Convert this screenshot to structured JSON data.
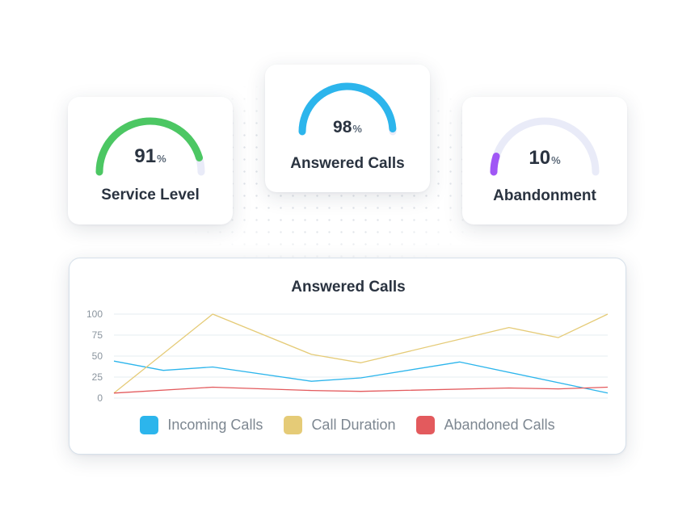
{
  "gauges": [
    {
      "label": "Service Level",
      "value": 91,
      "unit": "%",
      "color": "#4cc763"
    },
    {
      "label": "Answered Calls",
      "value": 98,
      "unit": "%",
      "color": "#2cb5ec"
    },
    {
      "label": "Abandonment",
      "value": 10,
      "unit": "%",
      "color": "#a057f5"
    }
  ],
  "gauge_track_color": "#e9ebf8",
  "chart_data": {
    "type": "line",
    "title": "Answered Calls",
    "x": [
      0,
      1,
      2,
      3,
      4,
      5,
      6,
      7,
      8,
      9,
      10
    ],
    "ylim": [
      0,
      100
    ],
    "yticks": [
      0,
      25,
      50,
      75,
      100
    ],
    "grid": true,
    "legend_position": "bottom",
    "series": [
      {
        "name": "Incoming Calls",
        "color": "#2cb5ec",
        "values": [
          44,
          33,
          37,
          null,
          20,
          24,
          null,
          43,
          null,
          null,
          6
        ]
      },
      {
        "name": "Call Duration",
        "color": "#e5cb77",
        "values": [
          6,
          null,
          100,
          null,
          52,
          42,
          null,
          null,
          84,
          72,
          100
        ]
      },
      {
        "name": "Abandoned Calls",
        "color": "#e35a5d",
        "values": [
          6,
          null,
          13,
          null,
          9,
          8,
          null,
          null,
          12,
          11,
          13
        ]
      }
    ]
  }
}
